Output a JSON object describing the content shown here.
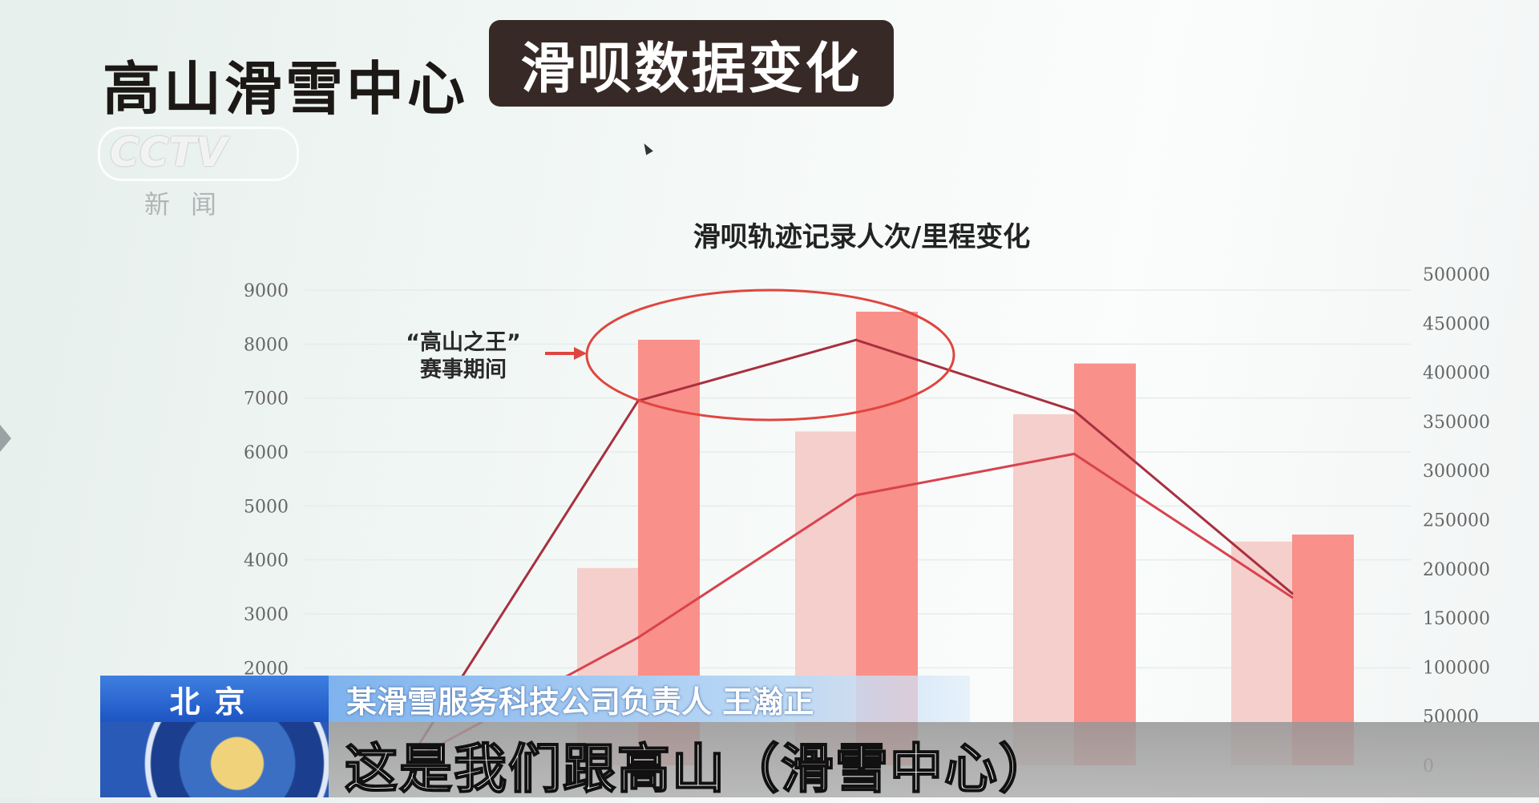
{
  "header": {
    "title": "高山滑雪中心",
    "badge": "滑呗数据变化"
  },
  "logo": {
    "text": "CCTV",
    "sub": "新闻"
  },
  "chart_data": {
    "type": "bar",
    "title": "滑呗轨迹记录人次/里程变化",
    "left_axis": {
      "ticks": [
        "9000",
        "8000",
        "7000",
        "6000",
        "5000",
        "4000",
        "3000",
        "2000"
      ],
      "range": [
        0,
        9000
      ]
    },
    "right_axis": {
      "ticks": [
        "500000",
        "450000",
        "400000",
        "350000",
        "300000",
        "250000",
        "200000",
        "150000",
        "100000",
        "50000",
        "0"
      ],
      "range": [
        0,
        500000
      ]
    },
    "bar_series": [
      {
        "axis": "left",
        "color": "#f5cfcb",
        "values": [
          null,
          3850,
          6380,
          6700,
          4340
        ]
      },
      {
        "axis": "left",
        "color": "#f9908a",
        "values": [
          null,
          8080,
          8600,
          7640,
          4470
        ]
      }
    ],
    "line_series": [
      {
        "type": "line",
        "axis": "right",
        "color": "#a8303f",
        "values": [
          23000,
          371000,
          433000,
          361000,
          175000
        ]
      },
      {
        "type": "line",
        "axis": "right",
        "color": "#d8434e",
        "values": [
          10000,
          130000,
          275000,
          317000,
          171000
        ]
      }
    ],
    "annotation": {
      "text_line1": "“高山之王”",
      "text_line2": "赛事期间",
      "color": "#e0453f"
    },
    "grid": true
  },
  "lower_third": {
    "city": "北京",
    "speaker": "某滑雪服务科技公司负责人 王瀚正",
    "subtitle": "这是我们跟高山（滑雪中心）"
  }
}
